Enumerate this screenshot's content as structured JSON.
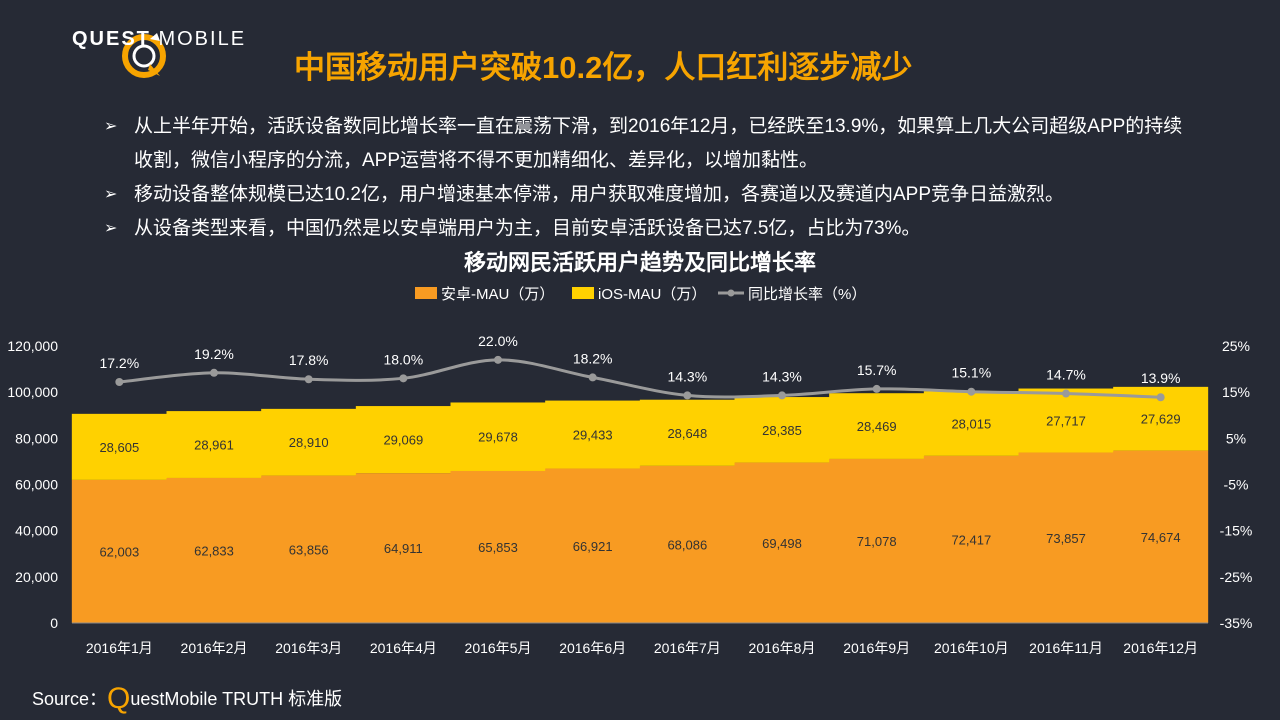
{
  "brand": {
    "name_bold": "QUEST",
    "name_light": "MOBILE",
    "accent": "#f7a400",
    "icon": "quest-mobile-logo-icon"
  },
  "header": {
    "title": "中国移动用户突破10.2亿，人口红利逐步减少"
  },
  "bullets": [
    "从上半年开始，活跃设备数同比增长率一直在震荡下滑，到2016年12月，已经跌至13.9%，如果算上几大公司超级APP的持续收割，微信小程序的分流，APP运营将不得不更加精细化、差异化，以增加黏性。",
    "移动设备整体规模已达10.2亿，用户增速基本停滞，用户获取难度增加，各赛道以及赛道内APP竞争日益激烈。",
    "从设备类型来看，中国仍然是以安卓端用户为主，目前安卓活跃设备已达7.5亿，占比为73%。"
  ],
  "bullet_icon": "arrow-bullet-icon",
  "chart_data": {
    "type": "bar",
    "stacked": true,
    "title": "移动网民活跃用户趋势及同比增长率",
    "categories": [
      "2016年1月",
      "2016年2月",
      "2016年3月",
      "2016年4月",
      "2016年5月",
      "2016年6月",
      "2016年7月",
      "2016年8月",
      "2016年9月",
      "2016年10月",
      "2016年11月",
      "2016年12月"
    ],
    "series": [
      {
        "name": "安卓-MAU（万）",
        "type": "bar",
        "color": "#f89b22",
        "values": [
          62003,
          62833,
          63856,
          64911,
          65853,
          66921,
          68086,
          69498,
          71078,
          72417,
          73857,
          74674
        ],
        "labels": [
          "62,003",
          "62,833",
          "63,856",
          "64,911",
          "65,853",
          "66,921",
          "68,086",
          "69,498",
          "71,078",
          "72,417",
          "73,857",
          "74,674"
        ]
      },
      {
        "name": "iOS-MAU（万）",
        "type": "bar",
        "color": "#ffd100",
        "values": [
          28605,
          28961,
          28910,
          29069,
          29678,
          29433,
          28648,
          28385,
          28469,
          28015,
          27717,
          27629
        ],
        "labels": [
          "28,605",
          "28,961",
          "28,910",
          "29,069",
          "29,678",
          "29,433",
          "28,648",
          "28,385",
          "28,469",
          "28,015",
          "27,717",
          "27,629"
        ]
      },
      {
        "name": "同比增长率（%）",
        "type": "line",
        "axis": "right",
        "color": "#9a9a9a",
        "values": [
          17.2,
          19.2,
          17.8,
          18.0,
          22.0,
          18.2,
          14.3,
          14.3,
          15.7,
          15.1,
          14.7,
          13.9
        ],
        "labels": [
          "17.2%",
          "19.2%",
          "17.8%",
          "18.0%",
          "22.0%",
          "18.2%",
          "14.3%",
          "14.3%",
          "15.7%",
          "15.1%",
          "14.7%",
          "13.9%"
        ]
      }
    ],
    "y_left": {
      "range": [
        0,
        120000
      ],
      "ticks": [
        0,
        20000,
        40000,
        60000,
        80000,
        100000,
        120000
      ],
      "tick_labels": [
        "0",
        "20,000",
        "40,000",
        "60,000",
        "80,000",
        "100,000",
        "120,000"
      ]
    },
    "y_right": {
      "range": [
        -35,
        25
      ],
      "ticks": [
        25,
        15,
        5,
        -5,
        -15,
        -25,
        -35
      ],
      "tick_labels": [
        "25%",
        "15%",
        "5%",
        "-5%",
        "-15%",
        "-25%",
        "-35%"
      ]
    },
    "legend_position": "top",
    "grid": false
  },
  "source": {
    "prefix": "Source：",
    "q": "Q",
    "rest": "uestMobile TRUTH 标准版"
  }
}
